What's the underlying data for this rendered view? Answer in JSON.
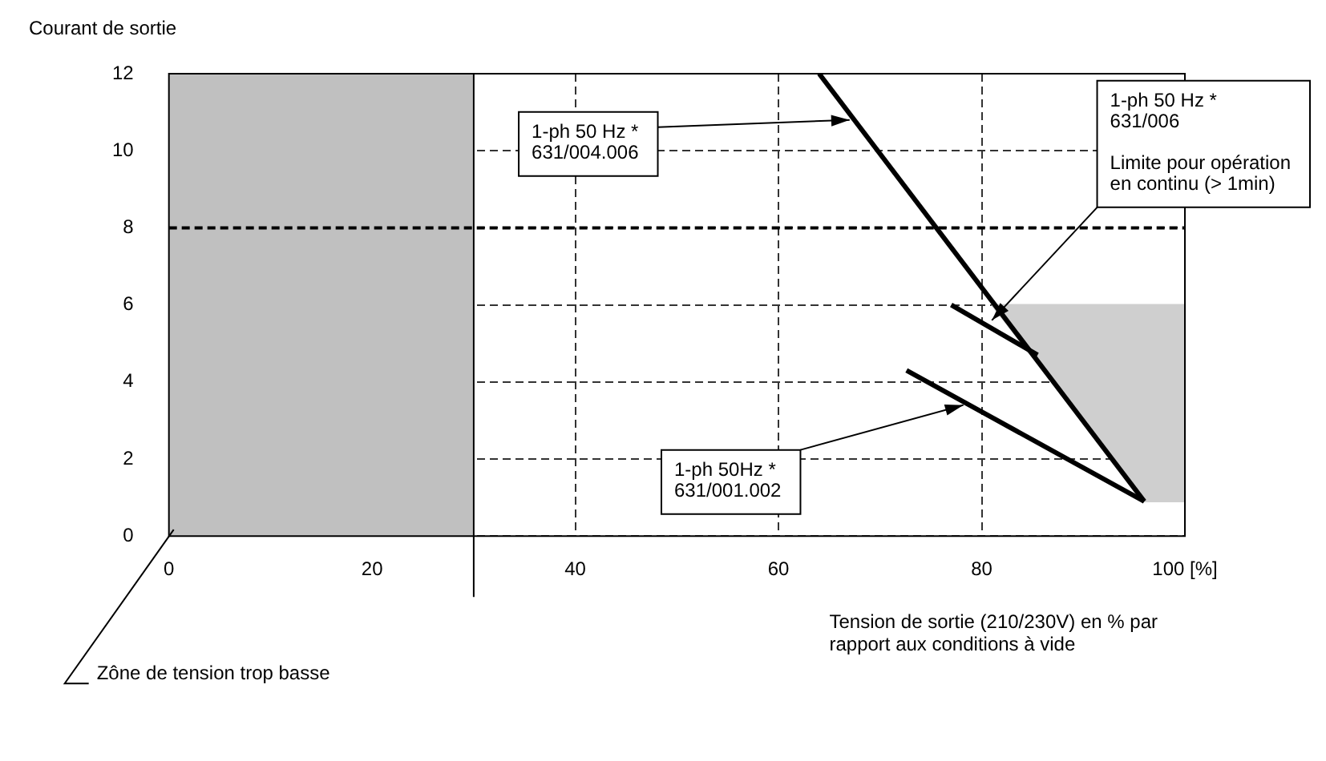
{
  "chart_data": {
    "type": "line",
    "ylabel": "Courant de sortie",
    "xlabel": "Tension de sortie (210/230V) en % par\nrapport aux conditions à vide",
    "xlim": [
      0,
      100
    ],
    "xticks": [
      0,
      20,
      40,
      60,
      80,
      {
        "value": 100,
        "label": "100 [%]"
      }
    ],
    "ylim": [
      0,
      12
    ],
    "yticks": [
      0,
      2,
      4,
      6,
      8,
      10,
      12
    ],
    "grid": true,
    "series": [
      {
        "color": "#000000",
        "x": [
          64,
          96
        ],
        "values": [
          12,
          0.9
        ]
      },
      {
        "color": "#000000",
        "x": [
          77,
          85.5
        ],
        "values": [
          6,
          4.7
        ]
      },
      {
        "color": "#000000",
        "x": [
          72.6,
          96
        ],
        "values": [
          4.3,
          0.9
        ]
      },
      {
        "type": "area",
        "color": "#cfcfcf",
        "x": [
          81,
          100,
          100,
          96,
          81
        ],
        "values": [
          6,
          6,
          0.9,
          0.9,
          6
        ]
      }
    ],
    "bands": [
      {
        "axis": "x",
        "from": 0,
        "to": 30,
        "color": "#c0c0c0",
        "label": "Zône de tension trop basse"
      }
    ],
    "ref_lines": [
      {
        "axis": "y",
        "value": 8,
        "line_style": "dashed",
        "color": "#000000"
      },
      {
        "axis": "x",
        "value": 30,
        "line_style": "solid",
        "color": "#000000"
      }
    ],
    "annotations": [
      {
        "text": "1-ph 50 Hz *\n631/004.006",
        "x": 67,
        "y": 10.8
      },
      {
        "text": "1-ph 50 Hz *\n631/006\n\nLimite pour opération\nen continu (> 1min)",
        "x": 81,
        "y": 5.6
      },
      {
        "text": "1-ph 50Hz *\n631/001.002",
        "x": 78.2,
        "y": 3.4
      }
    ]
  }
}
